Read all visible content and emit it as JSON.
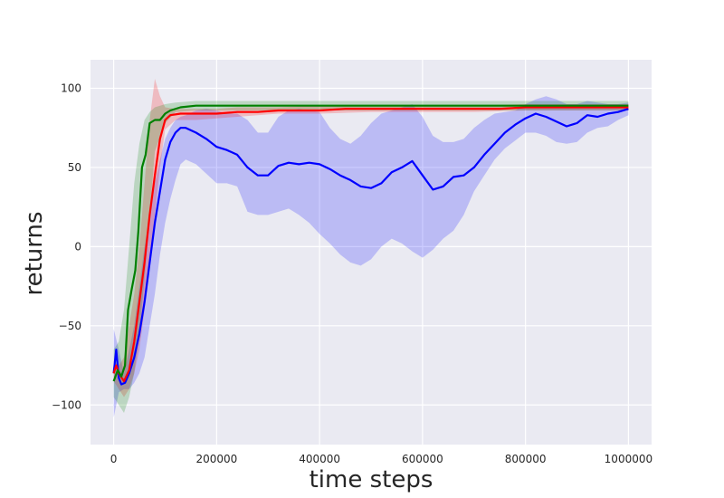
{
  "chart_data": {
    "type": "line",
    "title": "",
    "xlabel": "time steps",
    "ylabel": "returns",
    "xlim": [
      -45000,
      1045000
    ],
    "ylim": [
      -125,
      118
    ],
    "grid": true,
    "background": "#eaeaf2",
    "xticks": [
      0,
      200000,
      400000,
      600000,
      800000,
      1000000
    ],
    "xtick_labels": [
      "0",
      "200000",
      "400000",
      "600000",
      "800000",
      "1000000"
    ],
    "yticks": [
      -100,
      -50,
      0,
      50,
      100
    ],
    "ytick_labels": [
      "−100",
      "−50",
      "0",
      "50",
      "100"
    ],
    "series": [
      {
        "color": "#0000ff",
        "band_color": "#0000ff",
        "points": [
          [
            0,
            -80
          ],
          [
            5000,
            -65
          ],
          [
            10000,
            -83
          ],
          [
            15000,
            -87
          ],
          [
            22000,
            -86
          ],
          [
            30000,
            -80
          ],
          [
            40000,
            -70
          ],
          [
            50000,
            -55
          ],
          [
            60000,
            -35
          ],
          [
            70000,
            -10
          ],
          [
            80000,
            15
          ],
          [
            90000,
            35
          ],
          [
            100000,
            55
          ],
          [
            110000,
            66
          ],
          [
            120000,
            72
          ],
          [
            130000,
            75
          ],
          [
            140000,
            75
          ],
          [
            160000,
            72
          ],
          [
            180000,
            68
          ],
          [
            200000,
            63
          ],
          [
            220000,
            61
          ],
          [
            240000,
            58
          ],
          [
            260000,
            50
          ],
          [
            280000,
            45
          ],
          [
            300000,
            45
          ],
          [
            320000,
            51
          ],
          [
            340000,
            53
          ],
          [
            360000,
            52
          ],
          [
            380000,
            53
          ],
          [
            400000,
            52
          ],
          [
            420000,
            49
          ],
          [
            440000,
            45
          ],
          [
            460000,
            42
          ],
          [
            480000,
            38
          ],
          [
            500000,
            37
          ],
          [
            520000,
            40
          ],
          [
            540000,
            47
          ],
          [
            560000,
            50
          ],
          [
            580000,
            54
          ],
          [
            600000,
            45
          ],
          [
            620000,
            36
          ],
          [
            640000,
            38
          ],
          [
            660000,
            44
          ],
          [
            680000,
            45
          ],
          [
            700000,
            50
          ],
          [
            720000,
            58
          ],
          [
            740000,
            65
          ],
          [
            760000,
            72
          ],
          [
            780000,
            77
          ],
          [
            800000,
            81
          ],
          [
            820000,
            84
          ],
          [
            840000,
            82
          ],
          [
            860000,
            79
          ],
          [
            880000,
            76
          ],
          [
            900000,
            78
          ],
          [
            920000,
            83
          ],
          [
            940000,
            82
          ],
          [
            960000,
            84
          ],
          [
            980000,
            85
          ],
          [
            1000000,
            87
          ]
        ],
        "band": [
          [
            0,
            -108,
            -52
          ],
          [
            10000,
            -92,
            -65
          ],
          [
            20000,
            -90,
            -80
          ],
          [
            30000,
            -90,
            -65
          ],
          [
            40000,
            -86,
            -50
          ],
          [
            50000,
            -80,
            -25
          ],
          [
            60000,
            -70,
            0
          ],
          [
            70000,
            -50,
            20
          ],
          [
            80000,
            -30,
            40
          ],
          [
            90000,
            -5,
            55
          ],
          [
            100000,
            15,
            68
          ],
          [
            110000,
            30,
            75
          ],
          [
            120000,
            42,
            80
          ],
          [
            130000,
            52,
            82
          ],
          [
            140000,
            55,
            83
          ],
          [
            160000,
            52,
            86
          ],
          [
            180000,
            46,
            87
          ],
          [
            200000,
            40,
            86
          ],
          [
            220000,
            40,
            84
          ],
          [
            240000,
            38,
            84
          ],
          [
            260000,
            22,
            80
          ],
          [
            280000,
            20,
            72
          ],
          [
            300000,
            20,
            72
          ],
          [
            320000,
            22,
            82
          ],
          [
            340000,
            24,
            86
          ],
          [
            360000,
            20,
            87
          ],
          [
            380000,
            15,
            86
          ],
          [
            400000,
            8,
            85
          ],
          [
            420000,
            2,
            75
          ],
          [
            440000,
            -5,
            68
          ],
          [
            460000,
            -10,
            65
          ],
          [
            480000,
            -12,
            70
          ],
          [
            500000,
            -8,
            78
          ],
          [
            520000,
            0,
            84
          ],
          [
            540000,
            5,
            86
          ],
          [
            560000,
            2,
            88
          ],
          [
            580000,
            -3,
            90
          ],
          [
            600000,
            -7,
            82
          ],
          [
            620000,
            -2,
            70
          ],
          [
            640000,
            5,
            66
          ],
          [
            660000,
            10,
            66
          ],
          [
            680000,
            20,
            68
          ],
          [
            700000,
            35,
            75
          ],
          [
            720000,
            45,
            80
          ],
          [
            740000,
            55,
            84
          ],
          [
            760000,
            62,
            85
          ],
          [
            780000,
            67,
            86
          ],
          [
            800000,
            72,
            90
          ],
          [
            820000,
            72,
            93
          ],
          [
            840000,
            70,
            95
          ],
          [
            860000,
            66,
            93
          ],
          [
            880000,
            65,
            90
          ],
          [
            900000,
            66,
            90
          ],
          [
            920000,
            72,
            92
          ],
          [
            940000,
            75,
            91
          ],
          [
            960000,
            76,
            90
          ],
          [
            980000,
            80,
            90
          ],
          [
            1000000,
            83,
            91
          ]
        ]
      },
      {
        "color": "#ff0000",
        "band_color": "#ff0000",
        "points": [
          [
            0,
            -80
          ],
          [
            5000,
            -75
          ],
          [
            10000,
            -80
          ],
          [
            20000,
            -85
          ],
          [
            30000,
            -78
          ],
          [
            40000,
            -60
          ],
          [
            50000,
            -35
          ],
          [
            60000,
            -10
          ],
          [
            70000,
            20
          ],
          [
            80000,
            45
          ],
          [
            90000,
            68
          ],
          [
            100000,
            80
          ],
          [
            110000,
            83
          ],
          [
            130000,
            84
          ],
          [
            160000,
            84
          ],
          [
            200000,
            84
          ],
          [
            240000,
            85
          ],
          [
            280000,
            85
          ],
          [
            320000,
            86
          ],
          [
            360000,
            86
          ],
          [
            400000,
            86
          ],
          [
            450000,
            87
          ],
          [
            500000,
            87
          ],
          [
            550000,
            87
          ],
          [
            600000,
            87
          ],
          [
            650000,
            87
          ],
          [
            700000,
            87
          ],
          [
            750000,
            87
          ],
          [
            800000,
            88
          ],
          [
            850000,
            88
          ],
          [
            900000,
            88
          ],
          [
            950000,
            88
          ],
          [
            1000000,
            88
          ]
        ],
        "band": [
          [
            0,
            -85,
            -72
          ],
          [
            10000,
            -90,
            -75
          ],
          [
            20000,
            -95,
            -70
          ],
          [
            30000,
            -90,
            -50
          ],
          [
            40000,
            -80,
            -30
          ],
          [
            50000,
            -65,
            0
          ],
          [
            60000,
            -40,
            40
          ],
          [
            70000,
            -10,
            80
          ],
          [
            80000,
            20,
            106
          ],
          [
            90000,
            50,
            95
          ],
          [
            100000,
            74,
            88
          ],
          [
            120000,
            80,
            87
          ],
          [
            160000,
            80,
            87
          ],
          [
            200000,
            81,
            87
          ],
          [
            240000,
            82,
            88
          ],
          [
            280000,
            83,
            88
          ],
          [
            320000,
            84,
            88
          ],
          [
            400000,
            84,
            89
          ],
          [
            500000,
            85,
            89
          ],
          [
            600000,
            85,
            89
          ],
          [
            700000,
            85,
            89
          ],
          [
            800000,
            86,
            90
          ],
          [
            900000,
            86,
            90
          ],
          [
            1000000,
            86,
            90
          ]
        ]
      },
      {
        "color": "#008000",
        "band_color": "#008000",
        "points": [
          [
            0,
            -85
          ],
          [
            8000,
            -78
          ],
          [
            15000,
            -82
          ],
          [
            22000,
            -75
          ],
          [
            28000,
            -40
          ],
          [
            35000,
            -27
          ],
          [
            42000,
            -15
          ],
          [
            48000,
            10
          ],
          [
            55000,
            50
          ],
          [
            62000,
            58
          ],
          [
            70000,
            78
          ],
          [
            80000,
            80
          ],
          [
            90000,
            80
          ],
          [
            100000,
            84
          ],
          [
            110000,
            86
          ],
          [
            130000,
            88
          ],
          [
            160000,
            89
          ],
          [
            200000,
            89
          ],
          [
            250000,
            89
          ],
          [
            300000,
            89
          ],
          [
            350000,
            89
          ],
          [
            400000,
            89
          ],
          [
            450000,
            89
          ],
          [
            500000,
            89
          ],
          [
            550000,
            89
          ],
          [
            600000,
            89
          ],
          [
            650000,
            89
          ],
          [
            700000,
            89
          ],
          [
            750000,
            89
          ],
          [
            800000,
            89
          ],
          [
            850000,
            89
          ],
          [
            900000,
            89
          ],
          [
            950000,
            89
          ],
          [
            1000000,
            89
          ]
        ],
        "band": [
          [
            0,
            -95,
            -65
          ],
          [
            10000,
            -100,
            -60
          ],
          [
            20000,
            -105,
            -40
          ],
          [
            30000,
            -95,
            0
          ],
          [
            40000,
            -80,
            40
          ],
          [
            50000,
            -55,
            65
          ],
          [
            60000,
            -20,
            80
          ],
          [
            70000,
            20,
            85
          ],
          [
            80000,
            60,
            88
          ],
          [
            100000,
            78,
            90
          ],
          [
            120000,
            85,
            91
          ],
          [
            160000,
            86,
            92
          ],
          [
            200000,
            86,
            92
          ],
          [
            300000,
            86,
            92
          ],
          [
            400000,
            86,
            92
          ],
          [
            500000,
            86,
            92
          ],
          [
            600000,
            86,
            92
          ],
          [
            700000,
            86,
            92
          ],
          [
            800000,
            86,
            92
          ],
          [
            900000,
            86,
            92
          ],
          [
            1000000,
            86,
            92
          ]
        ]
      }
    ]
  }
}
